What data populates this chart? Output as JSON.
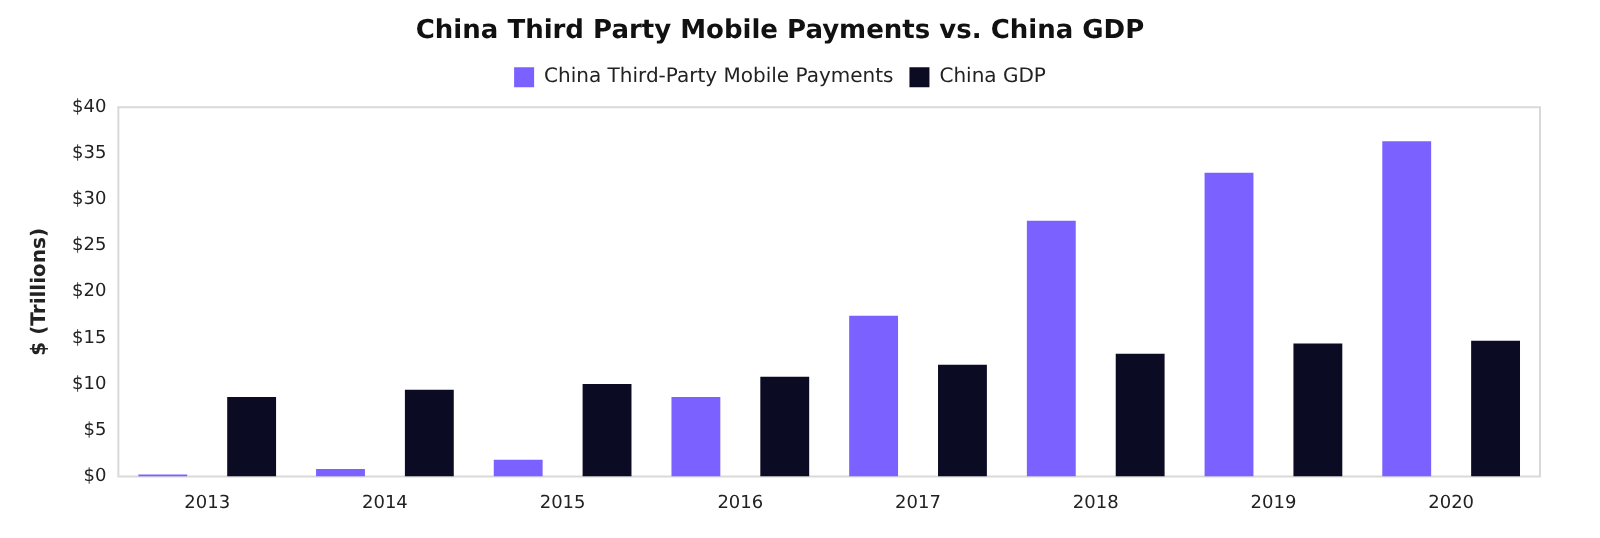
{
  "chart_data": {
    "type": "bar",
    "title": "China Third Party Mobile Payments vs. China GDP",
    "ylabel": "$ (Trillions)",
    "categories": [
      "2013",
      "2014",
      "2015",
      "2016",
      "2017",
      "2018",
      "2019",
      "2020"
    ],
    "series": [
      {
        "name": "China Third-Party Mobile Payments",
        "color": "#7b61ff",
        "values": [
          0.2,
          0.8,
          1.8,
          8.6,
          17.4,
          27.7,
          32.9,
          36.3
        ]
      },
      {
        "name": "China GDP",
        "color": "#0b0b24",
        "values": [
          8.6,
          9.4,
          10.0,
          10.8,
          12.1,
          13.3,
          14.4,
          14.7
        ]
      }
    ],
    "ylim": [
      0,
      40
    ],
    "yticks": [
      {
        "value": 0,
        "label": "$0"
      },
      {
        "value": 5,
        "label": "$5"
      },
      {
        "value": 10,
        "label": "$10"
      },
      {
        "value": 15,
        "label": "$15"
      },
      {
        "value": 20,
        "label": "$20"
      },
      {
        "value": 25,
        "label": "$25"
      },
      {
        "value": 30,
        "label": "$30"
      },
      {
        "value": 35,
        "label": "$35"
      },
      {
        "value": 40,
        "label": "$40"
      }
    ],
    "grid": false,
    "legend": "top"
  }
}
